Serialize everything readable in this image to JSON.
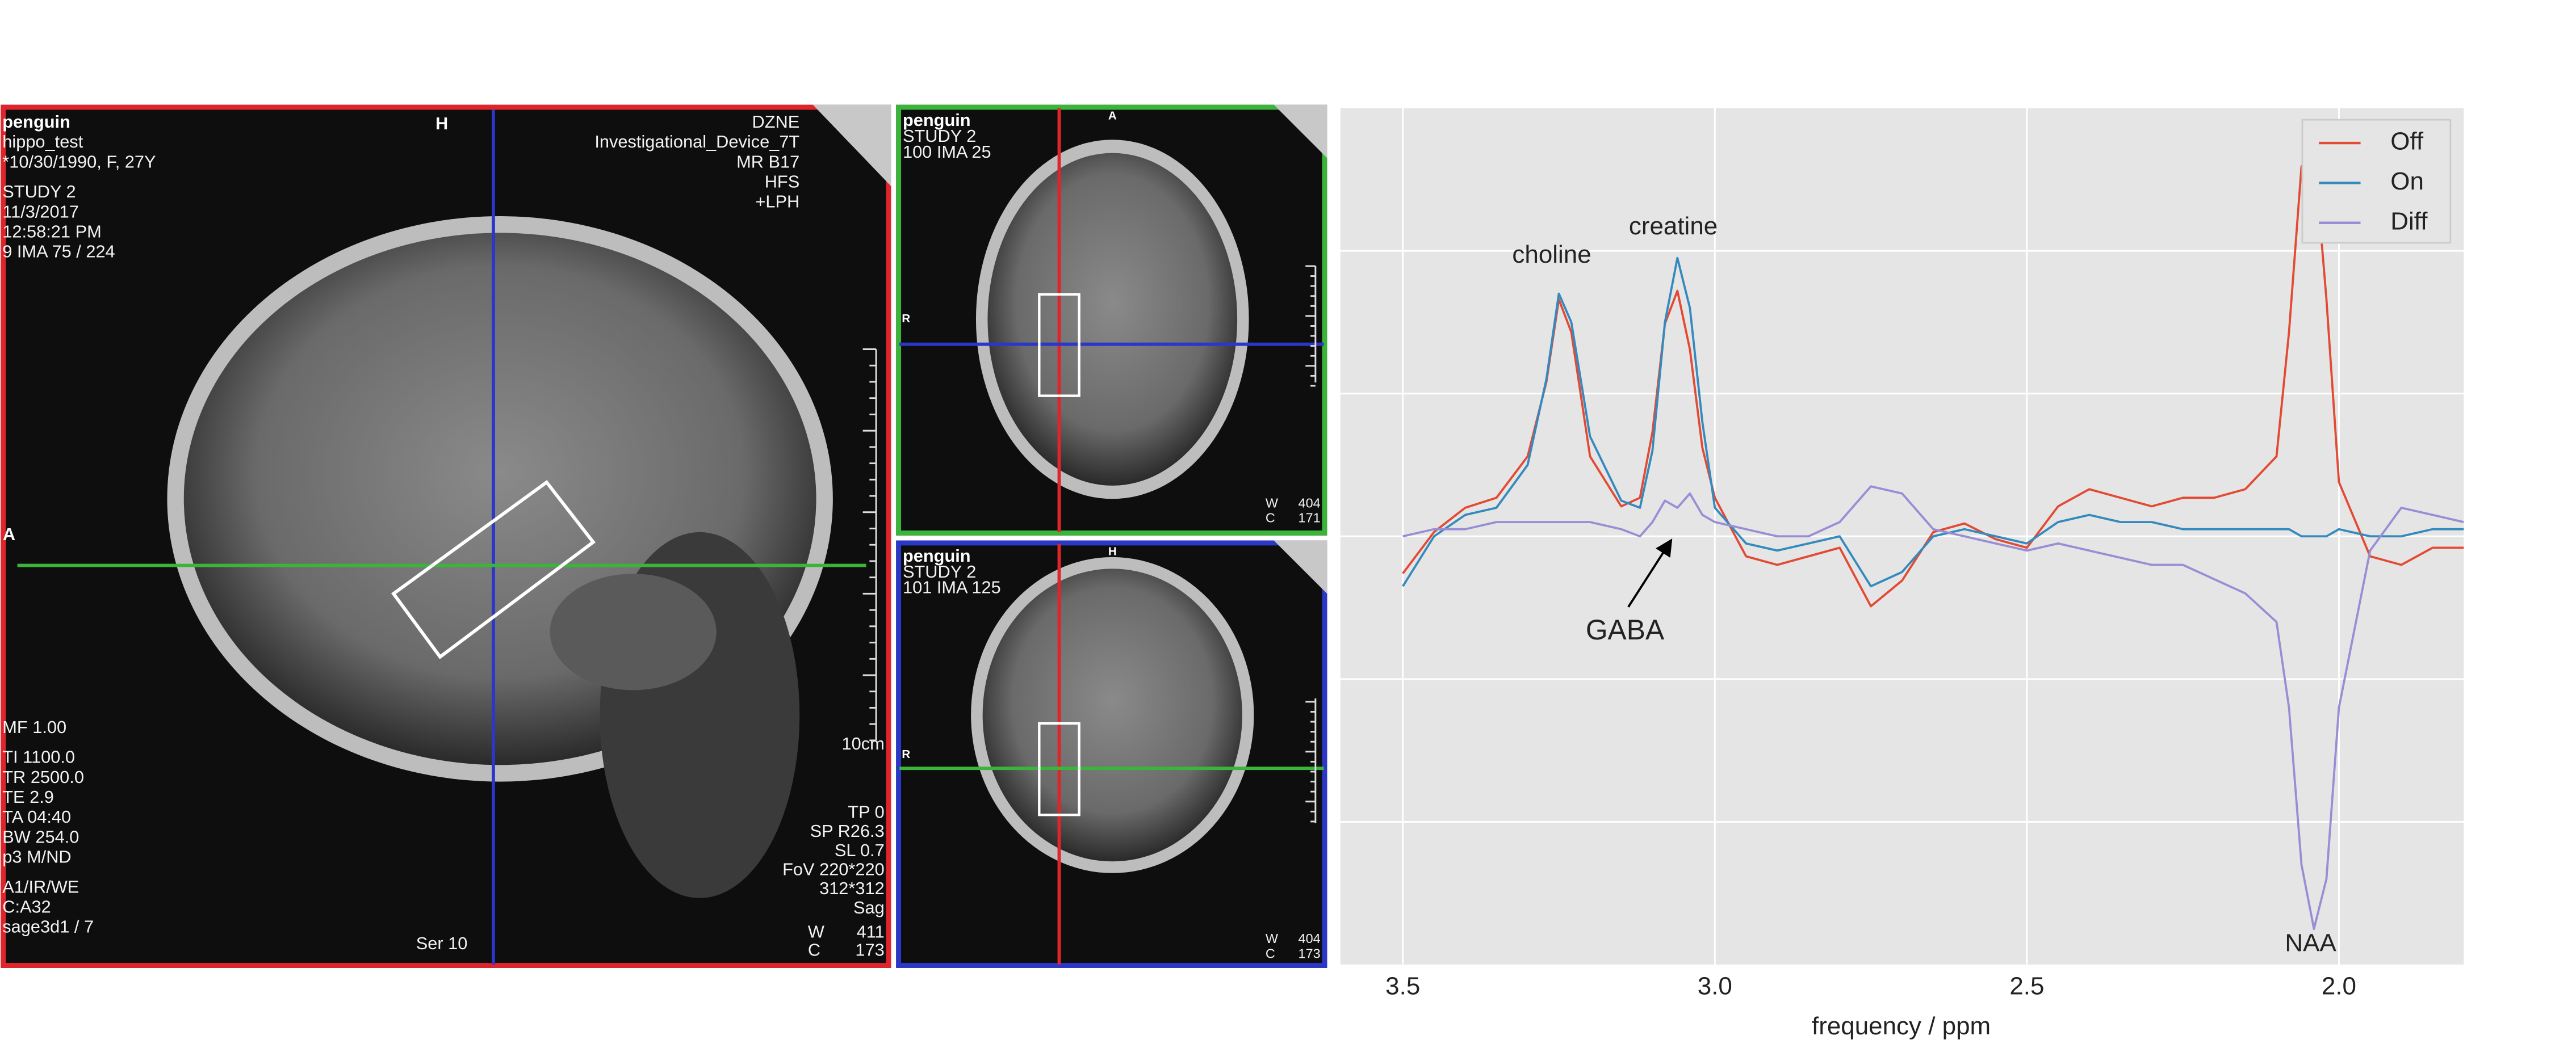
{
  "panels": {
    "sagittal": {
      "top_left": [
        "penguin",
        "hippo_test",
        "*10/30/1990, F, 27Y",
        "STUDY 2",
        "11/3/2017",
        "12:58:21 PM",
        "9 IMA 75 / 224"
      ],
      "top_right": [
        "DZNE",
        "Investigational_Device_7T",
        "MR B17",
        "HFS",
        "+LPH"
      ],
      "top_marker": "H",
      "left_marker": "A",
      "bottom_left": [
        "MF 1.00",
        "TI 1100.0",
        "TR 2500.0",
        "TE 2.9",
        "TA 04:40",
        "BW 254.0",
        "p3 M/ND",
        "A1/IR/WE",
        "C:A32",
        "sage3d1 / 7"
      ],
      "series_label": "Ser 10",
      "scale_label": "10cm",
      "bottom_right": [
        "TP 0",
        "SP R26.3",
        "SL 0.7",
        "FoV 220*220",
        "312*312",
        "Sag"
      ],
      "window": [
        "W",
        "411",
        "C",
        "173"
      ]
    },
    "axial": {
      "top_left": [
        "penguin",
        "STUDY 2",
        "100 IMA 25"
      ],
      "top_marker": "A",
      "left_marker": "R",
      "window": [
        "W",
        "404",
        "C",
        "171"
      ]
    },
    "coronal": {
      "top_left": [
        "penguin",
        "STUDY 2",
        "101 IMA 125"
      ],
      "top_marker": "H",
      "left_marker": "R",
      "window": [
        "W",
        "404",
        "C",
        "173"
      ]
    }
  },
  "chart_data": {
    "type": "line",
    "xlabel": "frequency / ppm",
    "x": [
      3.5,
      3.45,
      3.4,
      3.35,
      3.3,
      3.27,
      3.25,
      3.23,
      3.2,
      3.15,
      3.12,
      3.1,
      3.08,
      3.06,
      3.04,
      3.02,
      3.0,
      2.95,
      2.9,
      2.85,
      2.8,
      2.75,
      2.7,
      2.65,
      2.6,
      2.55,
      2.5,
      2.45,
      2.4,
      2.35,
      2.3,
      2.25,
      2.2,
      2.15,
      2.1,
      2.08,
      2.06,
      2.04,
      2.02,
      2.0,
      1.95,
      1.9,
      1.85,
      1.8
    ],
    "series": [
      {
        "name": "Off",
        "color": "#e24a33",
        "values": [
          -0.26,
          0.03,
          0.2,
          0.27,
          0.56,
          1.08,
          1.66,
          1.43,
          0.56,
          0.21,
          0.27,
          0.73,
          1.49,
          1.72,
          1.31,
          0.62,
          0.27,
          -0.14,
          -0.2,
          -0.14,
          -0.08,
          -0.49,
          -0.31,
          0.03,
          0.09,
          -0.02,
          -0.08,
          0.21,
          0.33,
          0.27,
          0.21,
          0.27,
          0.27,
          0.33,
          0.56,
          1.43,
          2.59,
          2.71,
          1.66,
          0.38,
          -0.14,
          -0.2,
          -0.08,
          -0.08
        ]
      },
      {
        "name": "On",
        "color": "#348abd",
        "values": [
          -0.35,
          0.0,
          0.15,
          0.2,
          0.5,
          1.1,
          1.7,
          1.5,
          0.7,
          0.25,
          0.2,
          0.6,
          1.5,
          1.95,
          1.6,
          0.8,
          0.2,
          -0.05,
          -0.1,
          -0.05,
          0.0,
          -0.35,
          -0.25,
          0.0,
          0.05,
          0.0,
          -0.05,
          0.1,
          0.15,
          0.1,
          0.1,
          0.05,
          0.05,
          0.05,
          0.05,
          0.05,
          0.0,
          0.0,
          0.0,
          0.05,
          0.0,
          0.0,
          0.05,
          0.05
        ]
      },
      {
        "name": "Diff",
        "color": "#988ed5",
        "values": [
          0.0,
          0.05,
          0.05,
          0.1,
          0.1,
          0.1,
          0.1,
          0.1,
          0.1,
          0.05,
          0.0,
          0.1,
          0.25,
          0.2,
          0.3,
          0.15,
          0.1,
          0.05,
          0.0,
          0.0,
          0.1,
          0.35,
          0.3,
          0.05,
          0.0,
          -0.05,
          -0.1,
          -0.05,
          -0.1,
          -0.15,
          -0.2,
          -0.2,
          -0.3,
          -0.4,
          -0.6,
          -1.2,
          -2.3,
          -2.75,
          -2.4,
          -1.2,
          -0.1,
          0.2,
          0.15,
          0.1
        ]
      }
    ],
    "xlim": [
      3.6,
      1.8
    ],
    "xticks": [
      3.5,
      {
        "value": 3,
        "label": "3.0"
      },
      2.5,
      {
        "value": 2,
        "label": "2.0"
      }
    ],
    "ylim": [
      -3,
      3
    ],
    "yticks": [
      -2,
      -1,
      0,
      1,
      2
    ],
    "grid": true,
    "legend": "upper right",
    "annotations": [
      "choline",
      "creatine",
      "GABA",
      "NAA"
    ]
  }
}
